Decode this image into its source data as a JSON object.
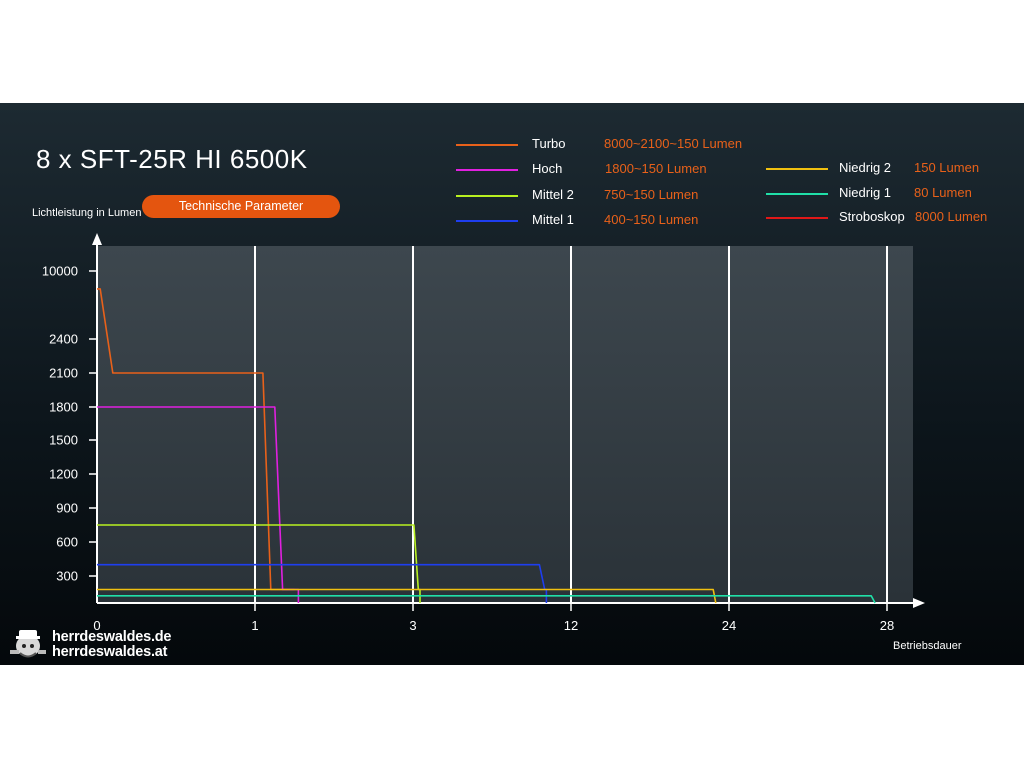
{
  "title": "8 x SFT-25R HI 6500K",
  "badge": "Technische Parameter",
  "logo": {
    "line1": "herrdeswaldes.de",
    "line2": "herrdeswaldes.at"
  },
  "chart_data": {
    "type": "line",
    "ylabel": "Lichtleistung in Lumen",
    "xlabel": "Betriebsdauer",
    "y_ticks": [
      "300",
      "600",
      "900",
      "1200",
      "1500",
      "1800",
      "2100",
      "2400",
      "10000"
    ],
    "x_ticks": [
      "0",
      "1",
      "3",
      "12",
      "24",
      "28"
    ],
    "grid": true,
    "legend_position": "top",
    "series": [
      {
        "name": "Turbo",
        "value_label": "8000~2100~150 Lumen",
        "color": "#e8611a",
        "points": [
          [
            0,
            8000
          ],
          [
            0.02,
            8000
          ],
          [
            0.1,
            2100
          ],
          [
            1.1,
            2100
          ],
          [
            1.2,
            150
          ],
          [
            1.5,
            150
          ]
        ]
      },
      {
        "name": "Hoch",
        "value_label": "1800~150 Lumen",
        "color": "#e020e0",
        "points": [
          [
            0,
            1800
          ],
          [
            1.25,
            1800
          ],
          [
            1.35,
            150
          ],
          [
            1.55,
            150
          ],
          [
            1.55,
            0
          ]
        ]
      },
      {
        "name": "Mittel 2",
        "value_label": "750~150 Lumen",
        "color": "#b8f020",
        "points": [
          [
            0,
            750
          ],
          [
            3.05,
            750
          ],
          [
            3.3,
            150
          ],
          [
            3.4,
            150
          ],
          [
            3.4,
            0
          ]
        ]
      },
      {
        "name": "Mittel 1",
        "value_label": "400~150 Lumen",
        "color": "#1e3ef0",
        "points": [
          [
            0,
            400
          ],
          [
            10.2,
            400
          ],
          [
            10.5,
            150
          ],
          [
            10.6,
            150
          ],
          [
            10.6,
            0
          ]
        ]
      },
      {
        "name": "Niedrig 2",
        "value_label": "150 Lumen",
        "color": "#f0c010",
        "points": [
          [
            0,
            150
          ],
          [
            22.8,
            150
          ],
          [
            23.0,
            0
          ]
        ]
      },
      {
        "name": "Niedrig 1",
        "value_label": "80 Lumen",
        "color": "#20e0a8",
        "points": [
          [
            0,
            80
          ],
          [
            27.6,
            80
          ],
          [
            27.7,
            0
          ]
        ]
      },
      {
        "name": "Stroboskop",
        "value_label": "8000 Lumen",
        "color": "#e01818",
        "points": []
      }
    ]
  }
}
